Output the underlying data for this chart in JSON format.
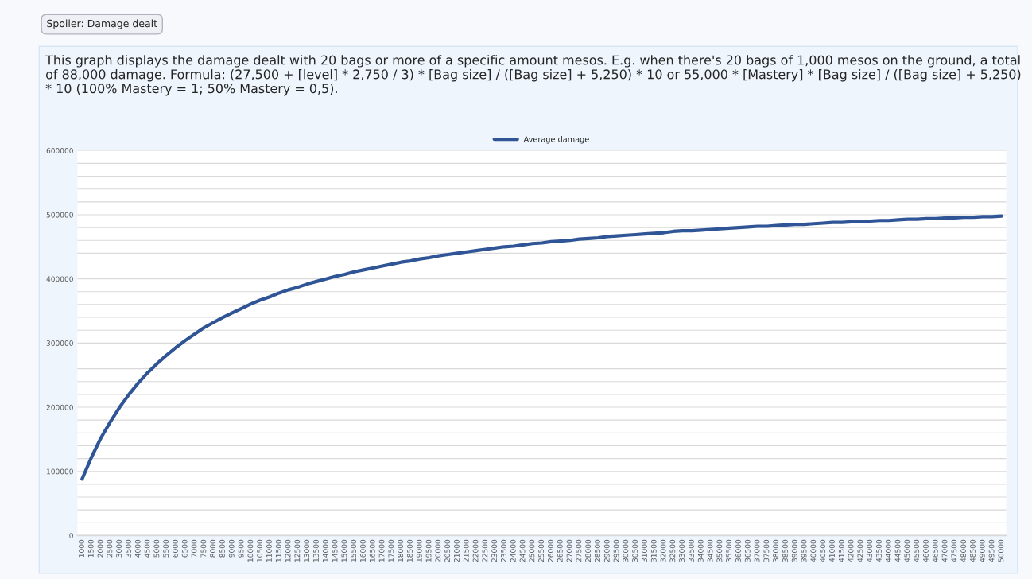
{
  "chart_data": {
    "type": "line",
    "title": "This graph displays the damage dealt with 20 bags or more of a specific amount mesos. E.g. when there's 20 bags of 1,000 mesos on the ground, a total of 88,000 damage. Formula: (27,500 + [level] * 2,750 / 3) * [Bag size] / ([Bag size] + 5,250) * 10 or 55,000 * [Mastery] * [Bag size] / ([Bag size] + 5,250) * 10 (100% Mastery = 1; 50% Mastery = 0,5).",
    "annotations": [
      "Spoiler: Damage dealt"
    ],
    "categories": [
      "1000",
      "1500",
      "2000",
      "2500",
      "3000",
      "3500",
      "4000",
      "4500",
      "5000",
      "5500",
      "6000",
      "6500",
      "7000",
      "7500",
      "8000",
      "8500",
      "9000",
      "9500",
      "10000",
      "10500",
      "11000",
      "11500",
      "12000",
      "12500",
      "13000",
      "13500",
      "14000",
      "14500",
      "15000",
      "15500",
      "16000",
      "16500",
      "17000",
      "17500",
      "18000",
      "18500",
      "19000",
      "19500",
      "20000",
      "20500",
      "21000",
      "21500",
      "22000",
      "22500",
      "23000",
      "23500",
      "24000",
      "24500",
      "25000",
      "25500",
      "26000",
      "26500",
      "27000",
      "27500",
      "28000",
      "28500",
      "29000",
      "29500",
      "30000",
      "30500",
      "31000",
      "31500",
      "32000",
      "32500",
      "33000",
      "33500",
      "34000",
      "34500",
      "35000",
      "35500",
      "36000",
      "36500",
      "37000",
      "37500",
      "38000",
      "38500",
      "39000",
      "39500",
      "40000",
      "40500",
      "41000",
      "41500",
      "42000",
      "42500",
      "43000",
      "43500",
      "44000",
      "44500",
      "45000",
      "45500",
      "46000",
      "46500",
      "47000",
      "47500",
      "48000",
      "48500",
      "49000",
      "49500",
      "50000"
    ],
    "series": [
      {
        "name": "Average damage",
        "color": "#2f5597",
        "values": [
          88000,
          122000,
          152000,
          177000,
          200000,
          220000,
          238000,
          254000,
          268000,
          281000,
          293000,
          304000,
          314000,
          324000,
          332000,
          340000,
          347000,
          354000,
          361000,
          367000,
          372000,
          378000,
          383000,
          387000,
          392000,
          396000,
          400000,
          404000,
          407000,
          411000,
          414000,
          417000,
          420000,
          423000,
          426000,
          428000,
          431000,
          433000,
          436000,
          438000,
          440000,
          442000,
          444000,
          446000,
          448000,
          450000,
          451000,
          453000,
          455000,
          456000,
          458000,
          459000,
          460000,
          462000,
          463000,
          464000,
          466000,
          467000,
          468000,
          469000,
          470000,
          471000,
          472000,
          474000,
          475000,
          475000,
          476000,
          477000,
          478000,
          479000,
          480000,
          481000,
          482000,
          482000,
          483000,
          484000,
          485000,
          485000,
          486000,
          487000,
          488000,
          488000,
          489000,
          490000,
          490000,
          491000,
          491000,
          492000,
          493000,
          493000,
          494000,
          494000,
          495000,
          495000,
          496000,
          496000,
          497000,
          497000,
          498000
        ]
      }
    ],
    "ylim": [
      0,
      600000
    ],
    "yticks": [
      0,
      {
        "value": 20000,
        "label": null
      },
      {
        "value": 40000,
        "label": null
      },
      {
        "value": 60000,
        "label": null
      },
      {
        "value": 80000,
        "label": null
      },
      100000,
      {
        "value": 120000,
        "label": null
      },
      {
        "value": 140000,
        "label": null
      },
      {
        "value": 160000,
        "label": null
      },
      {
        "value": 180000,
        "label": null
      },
      200000,
      {
        "value": 220000,
        "label": null
      },
      {
        "value": 240000,
        "label": null
      },
      {
        "value": 260000,
        "label": null
      },
      {
        "value": 280000,
        "label": null
      },
      300000,
      {
        "value": 320000,
        "label": null
      },
      {
        "value": 340000,
        "label": null
      },
      {
        "value": 360000,
        "label": null
      },
      {
        "value": 380000,
        "label": null
      },
      400000,
      {
        "value": 420000,
        "label": null
      },
      {
        "value": 440000,
        "label": null
      },
      {
        "value": 460000,
        "label": null
      },
      {
        "value": 480000,
        "label": null
      },
      500000,
      {
        "value": 520000,
        "label": null
      },
      {
        "value": 540000,
        "label": null
      },
      {
        "value": 560000,
        "label": null
      },
      {
        "value": 580000,
        "label": null
      },
      600000
    ],
    "grid": "y",
    "legend": "top",
    "marker": "none",
    "line_style": "solid"
  }
}
